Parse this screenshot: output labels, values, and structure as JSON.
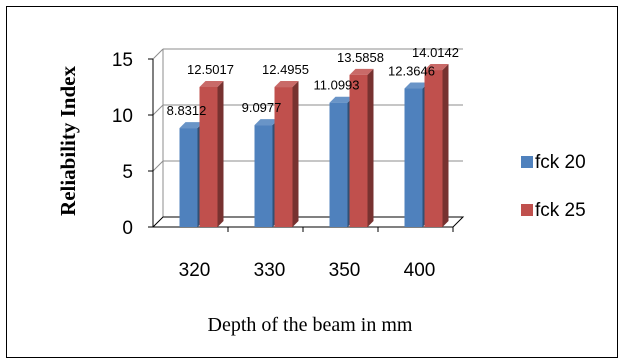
{
  "chart_data": {
    "type": "bar",
    "title": "",
    "xlabel": "Depth of the beam in mm",
    "ylabel": "Reliability Index",
    "categories": [
      "320",
      "330",
      "350",
      "400"
    ],
    "series": [
      {
        "name": "fck 20",
        "values": [
          8.8312,
          9.0977,
          11.0993,
          12.3646
        ],
        "labels": [
          "8.8312",
          "9.0977",
          "11.0993",
          "12.3646"
        ],
        "color": "#4f81bd"
      },
      {
        "name": "fck 25",
        "values": [
          12.5017,
          12.4955,
          13.5858,
          14.0142
        ],
        "labels": [
          "12.5017",
          "12.4955",
          "13.5858",
          "14.0142"
        ],
        "color": "#c0504d"
      }
    ],
    "yticks": [
      "0",
      "5",
      "10",
      "15"
    ],
    "ylim": [
      0,
      15
    ],
    "grid": true,
    "legend": "right",
    "style": "3d-bar"
  }
}
